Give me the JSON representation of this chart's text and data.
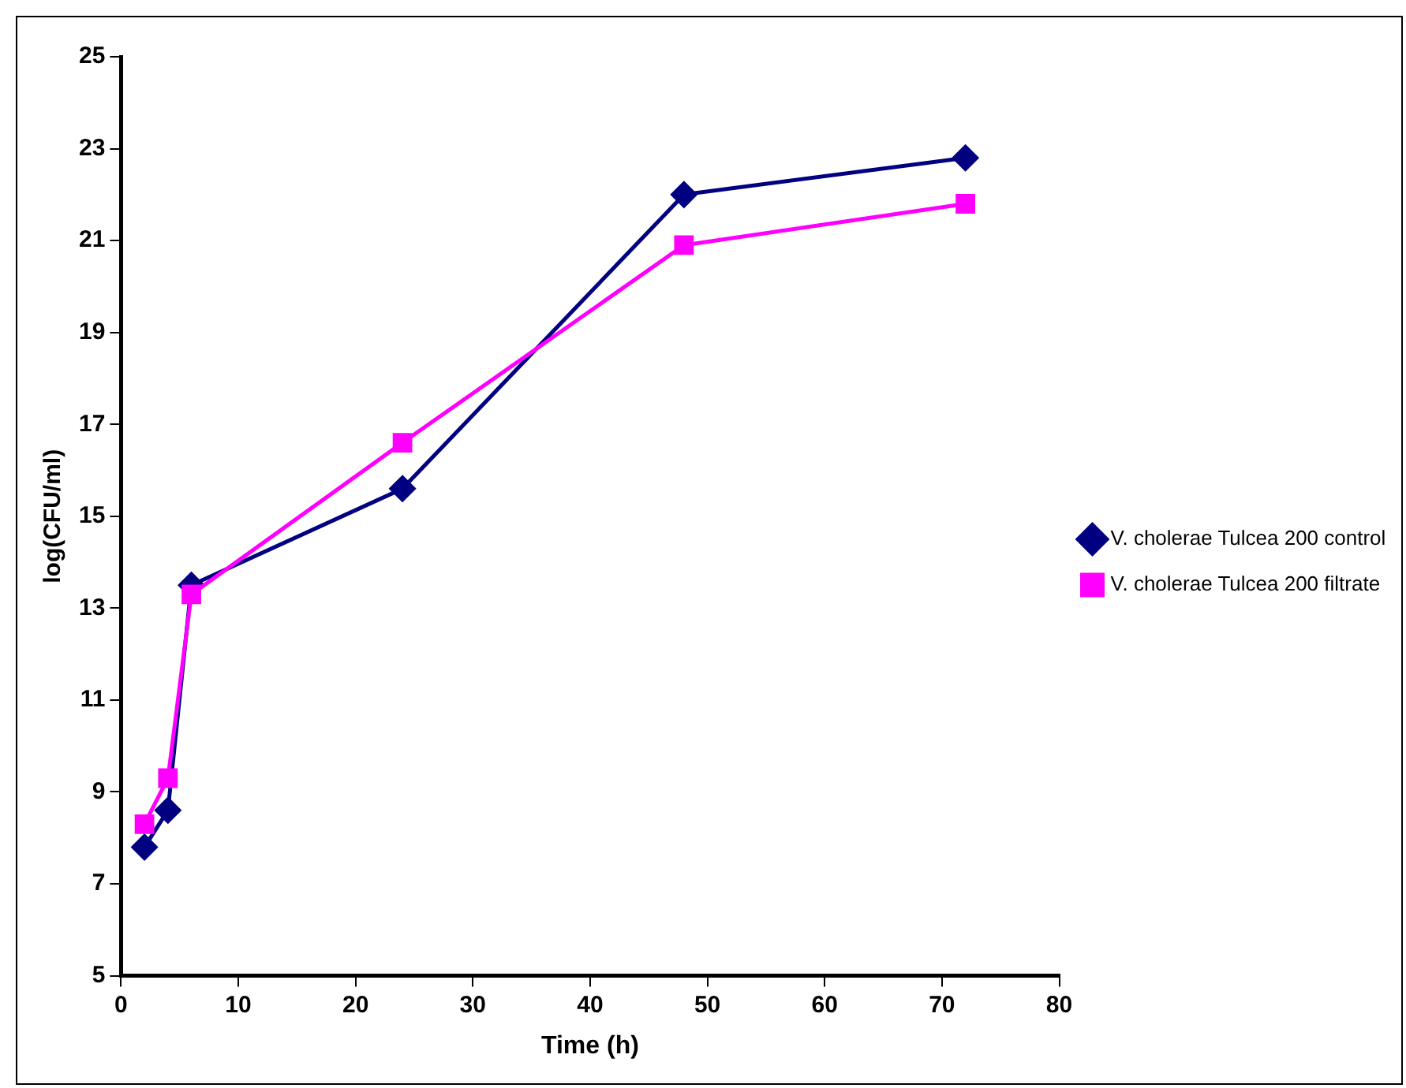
{
  "chart_data": {
    "type": "line",
    "xlabel": "Time (h)",
    "ylabel": "log(CFU/ml)",
    "x": [
      2,
      4,
      6,
      24,
      48,
      72
    ],
    "series": [
      {
        "name": "V. cholerae Tulcea 200 control",
        "color": "#000080",
        "marker": "diamond",
        "values": [
          7.8,
          8.6,
          13.5,
          15.6,
          22.0,
          22.8
        ]
      },
      {
        "name": "V. cholerae Tulcea 200 filtrate",
        "color": "#ff00ff",
        "marker": "square",
        "values": [
          8.3,
          9.3,
          13.3,
          16.6,
          20.9,
          21.8
        ]
      }
    ],
    "xlim": [
      0,
      80
    ],
    "xticks": [
      0,
      10,
      20,
      30,
      40,
      50,
      60,
      70,
      80
    ],
    "ylim": [
      5,
      25
    ],
    "yticks": [
      5,
      7,
      9,
      11,
      13,
      15,
      17,
      19,
      21,
      23,
      25
    ],
    "grid": false,
    "legend": "right"
  }
}
